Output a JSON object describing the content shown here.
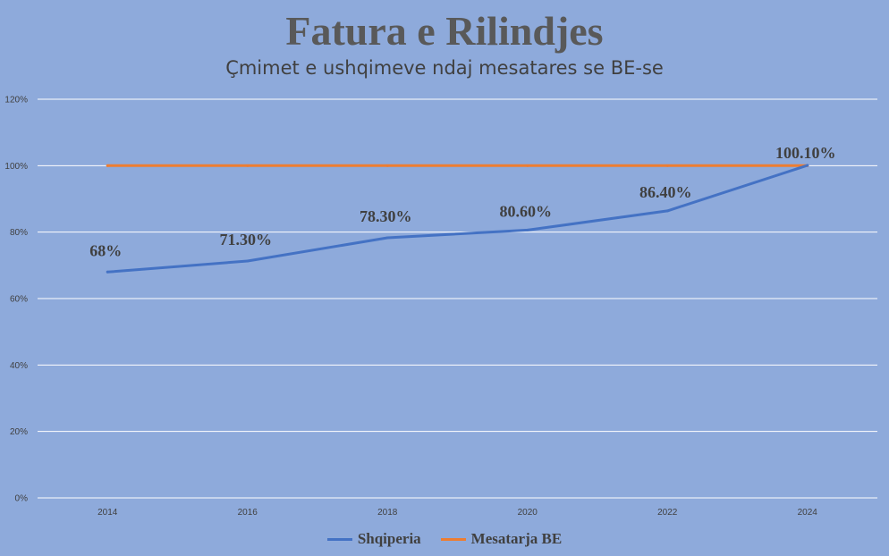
{
  "chart_data": {
    "type": "line",
    "title": "Fatura e Rilindjes",
    "subtitle": "Çmimet e ushqimeve ndaj mesatares se BE-se",
    "x": [
      "2014",
      "2016",
      "2018",
      "2020",
      "2022",
      "2024"
    ],
    "ylim": [
      0,
      120
    ],
    "yticks": [
      0,
      20,
      40,
      60,
      80,
      100,
      120
    ],
    "ytick_labels": [
      "0%",
      "20%",
      "40%",
      "60%",
      "80%",
      "100%",
      "120%"
    ],
    "grid": "horizontal",
    "legend_position": "bottom",
    "series": [
      {
        "name": "Shqiperia",
        "color": "#4472c4",
        "values": [
          68,
          71.3,
          78.3,
          80.6,
          86.4,
          100.1
        ],
        "data_labels": [
          "68%",
          "71.30%",
          "78.30%",
          "80.60%",
          "86.40%",
          "100.10%"
        ]
      },
      {
        "name": "Mesatarja BE",
        "color": "#ed7d31",
        "values": [
          100,
          100,
          100,
          100,
          100,
          100
        ]
      }
    ]
  },
  "colors": {
    "background": "#8eaadb",
    "gridline": "#ffffff",
    "text": "#404040"
  }
}
